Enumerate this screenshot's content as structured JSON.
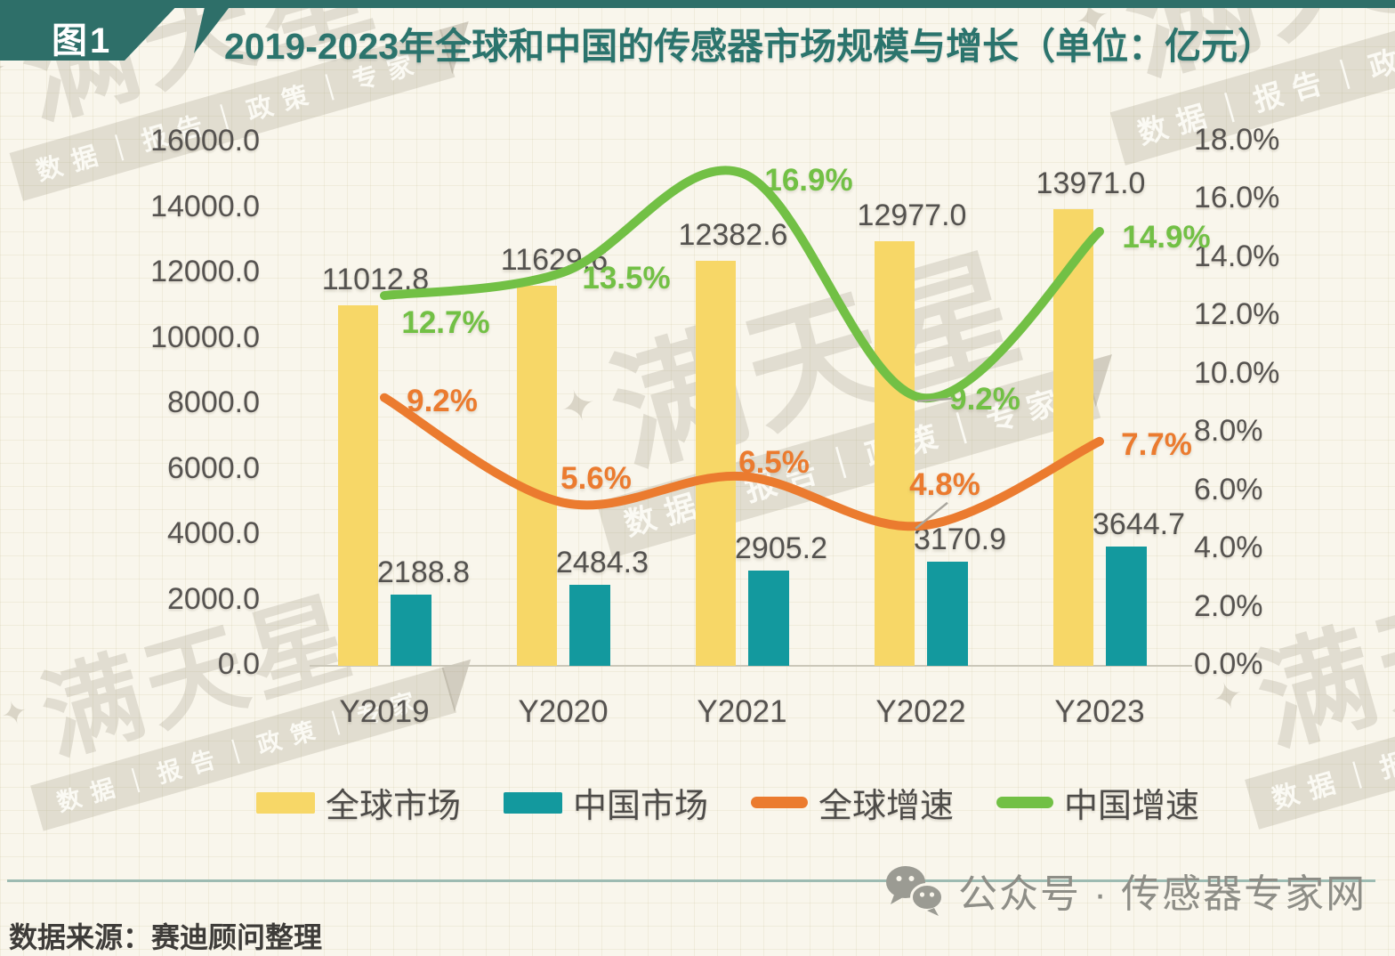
{
  "figure": {
    "tag": "图1",
    "title": "2019-2023年全球和中国的传感器市场规模与增长（单位：亿元）"
  },
  "watermark": {
    "star": "✦",
    "brand": "满天星",
    "tagline": "数据｜报告｜政策｜专家"
  },
  "chart_data": {
    "type": "combo-bar-line",
    "categories": [
      "Y2019",
      "Y2020",
      "Y2021",
      "Y2022",
      "Y2023"
    ],
    "series": [
      {
        "name": "全球市场",
        "type": "bar",
        "axis": "left",
        "color": "#f7d767",
        "values": [
          11012.8,
          11629.6,
          12382.6,
          12977.0,
          13971.0
        ]
      },
      {
        "name": "中国市场",
        "type": "bar",
        "axis": "left",
        "color": "#13999e",
        "values": [
          2188.8,
          2484.3,
          2905.2,
          3170.9,
          3644.7
        ]
      },
      {
        "name": "全球增速",
        "type": "line",
        "axis": "right",
        "color": "#eb7b2f",
        "values": [
          9.2,
          5.6,
          6.5,
          4.8,
          7.7
        ]
      },
      {
        "name": "中国增速",
        "type": "line",
        "axis": "right",
        "color": "#72c045",
        "values": [
          12.7,
          13.5,
          16.9,
          9.2,
          14.9
        ]
      }
    ],
    "left_axis": {
      "min": 0,
      "max": 16000,
      "step": 2000,
      "tick_labels": [
        "16000.0",
        "14000.0",
        "12000.0",
        "10000.0",
        "8000.0",
        "6000.0",
        "4000.0",
        "2000.0",
        "0.0"
      ]
    },
    "right_axis": {
      "min": 0,
      "max": 18,
      "step": 2,
      "tick_labels": [
        "18.0%",
        "16.0%",
        "14.0%",
        "12.0%",
        "10.0%",
        "8.0%",
        "6.0%",
        "4.0%",
        "2.0%",
        "0.0%"
      ]
    },
    "legend_position": "bottom",
    "grid": false
  },
  "footer": {
    "source": "数据来源：赛迪顾问整理",
    "wechat_label": "公众号 · 传感器专家网"
  }
}
